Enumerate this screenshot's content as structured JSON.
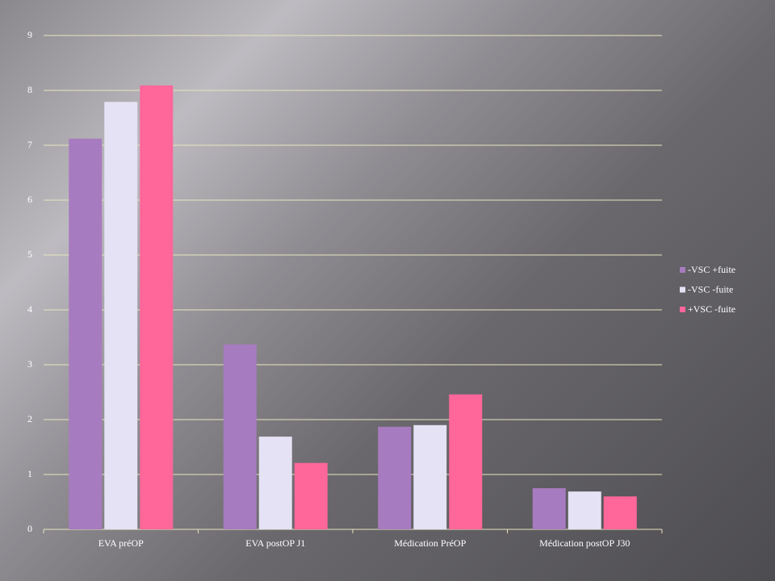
{
  "chart_data": {
    "type": "bar",
    "categories": [
      "EVA préOP",
      "EVA postOP J1",
      "Médication PréOP",
      "Médication postOP J30"
    ],
    "series": [
      {
        "name": "-VSC +fuite",
        "color": "#a77bbf",
        "values": [
          7.12,
          3.37,
          1.87,
          0.75
        ]
      },
      {
        "name": "-VSC -fuite",
        "color": "#e4e2f4",
        "values": [
          7.79,
          1.69,
          1.9,
          0.69
        ]
      },
      {
        "name": "+VSC -fuite",
        "color": "#ff6699",
        "values": [
          8.09,
          1.21,
          2.46,
          0.6
        ]
      }
    ],
    "ylim": [
      0,
      9
    ],
    "yticks": [
      0,
      1,
      2,
      3,
      4,
      5,
      6,
      7,
      8,
      9
    ],
    "grid": true,
    "legend": "right"
  }
}
